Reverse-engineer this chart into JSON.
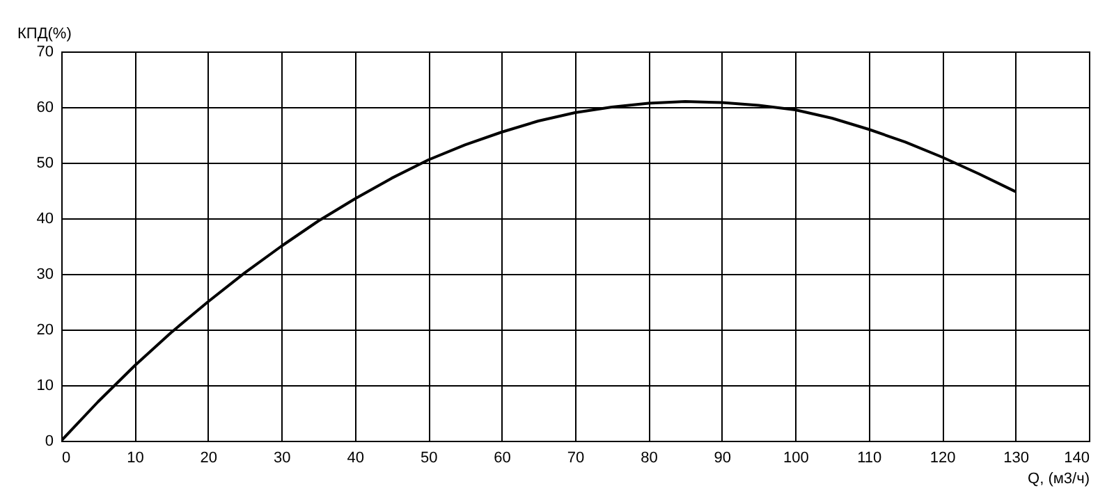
{
  "chart_data": {
    "type": "line",
    "xlabel": "Q, (м3/ч)",
    "ylabel": "КПД(%)",
    "x": [
      0,
      5,
      10,
      15,
      20,
      25,
      30,
      35,
      40,
      45,
      50,
      55,
      60,
      65,
      70,
      75,
      80,
      85,
      90,
      95,
      100,
      105,
      110,
      115,
      120,
      125,
      130
    ],
    "series": [
      {
        "color": "#000000",
        "values": [
          0,
          7,
          13.5,
          19.5,
          25,
          30.2,
          35,
          39.5,
          43.5,
          47.2,
          50.5,
          53.2,
          55.5,
          57.5,
          59,
          60,
          60.7,
          61,
          60.8,
          60.3,
          59.5,
          58,
          56,
          53.7,
          51,
          48,
          44.8
        ]
      }
    ],
    "xlim": [
      0,
      140
    ],
    "ylim": [
      0,
      70
    ],
    "xticks": [
      0,
      10,
      20,
      30,
      40,
      50,
      60,
      70,
      80,
      90,
      100,
      110,
      120,
      130,
      140
    ],
    "yticks": [
      0,
      10,
      20,
      30,
      40,
      50,
      60,
      70
    ],
    "grid": true,
    "marker": "none",
    "line_style": "solid"
  }
}
